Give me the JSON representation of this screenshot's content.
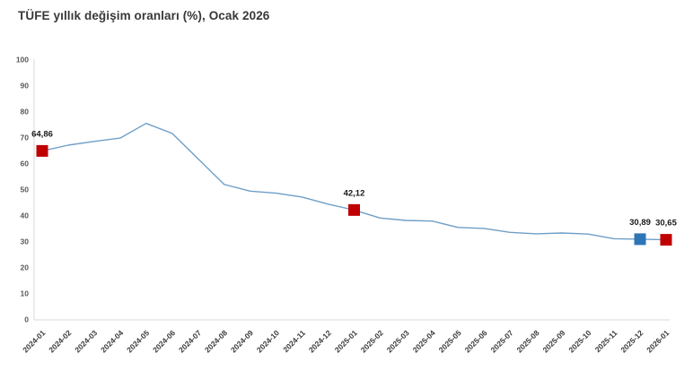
{
  "title": "TÜFE yıllık değişim oranları (%), Ocak 2026",
  "chart_data": {
    "type": "line",
    "title": "TÜFE yıllık değişim oranları (%), Ocak 2026",
    "xlabel": "",
    "ylabel": "",
    "x": [
      "2024-01",
      "2024-02",
      "2024-03",
      "2024-04",
      "2024-05",
      "2024-06",
      "2024-07",
      "2024-08",
      "2024-09",
      "2024-10",
      "2024-11",
      "2024-12",
      "2025-01",
      "2025-02",
      "2025-03",
      "2025-04",
      "2025-05",
      "2025-06",
      "2025-07",
      "2025-08",
      "2025-09",
      "2025-10",
      "2025-11",
      "2025-12",
      "2026-01"
    ],
    "values": [
      64.86,
      67.07,
      68.5,
      69.8,
      75.45,
      71.6,
      61.78,
      51.97,
      49.38,
      48.58,
      47.09,
      44.38,
      42.12,
      39.05,
      38.1,
      37.86,
      35.41,
      35.05,
      33.52,
      32.95,
      33.29,
      32.87,
      31.07,
      30.89,
      30.65
    ],
    "ylim": [
      0,
      100
    ],
    "y_ticks": [
      0,
      10,
      20,
      30,
      40,
      50,
      60,
      70,
      80,
      90,
      100
    ],
    "grid": false,
    "legend": "none",
    "line_color": "#6f9fc8",
    "axis_color": "#d9d9d9",
    "highlighted_points": [
      {
        "x": "2024-01",
        "value": 64.86,
        "label": "64,86",
        "color": "#c00000"
      },
      {
        "x": "2025-01",
        "value": 42.12,
        "label": "42,12",
        "color": "#c00000"
      },
      {
        "x": "2025-12",
        "value": 30.89,
        "label": "30,89",
        "color": "#2e75b6"
      },
      {
        "x": "2026-01",
        "value": 30.65,
        "label": "30,65",
        "color": "#c00000"
      }
    ]
  }
}
